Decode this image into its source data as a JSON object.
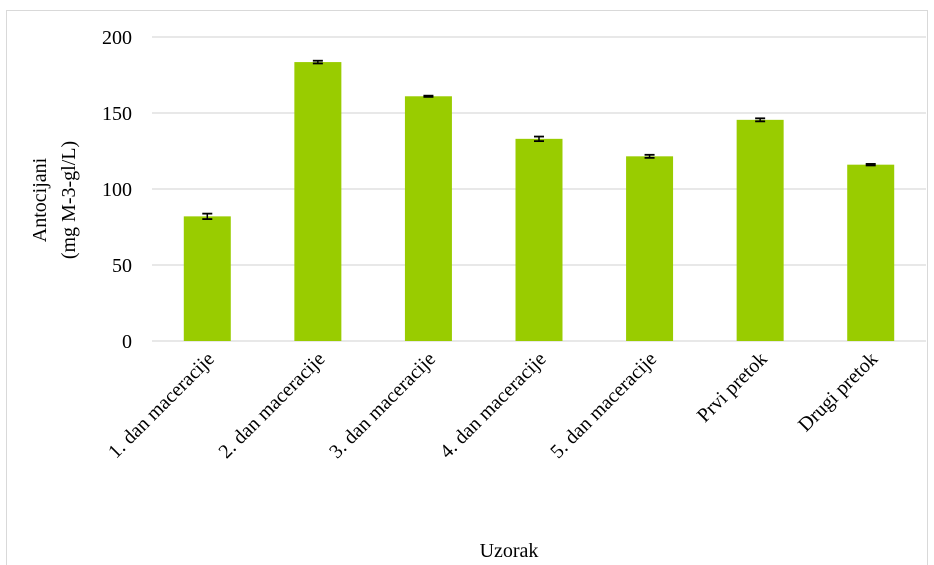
{
  "chart_data": {
    "type": "bar",
    "categories": [
      "1. dan maceracije",
      "2. dan maceracije",
      "3. dan maceracije",
      "4. dan maceracije",
      "5. dan maceracije",
      "Prvi pretok",
      "Drugi pretok"
    ],
    "values": [
      82,
      183.5,
      161,
      133,
      121.5,
      145.5,
      116
    ],
    "errors": [
      1.8,
      0.9,
      0.4,
      1.5,
      1.0,
      1.0,
      0.5
    ],
    "xlabel": "Uzorak",
    "ylabel": [
      "Antocijani",
      "(mg M-3-gl/L)"
    ],
    "ylim": [
      0,
      200
    ],
    "yticks": [
      0,
      50,
      100,
      150,
      200
    ],
    "grid": true,
    "bar_color": "#99cc00",
    "error_color": "#000000"
  }
}
